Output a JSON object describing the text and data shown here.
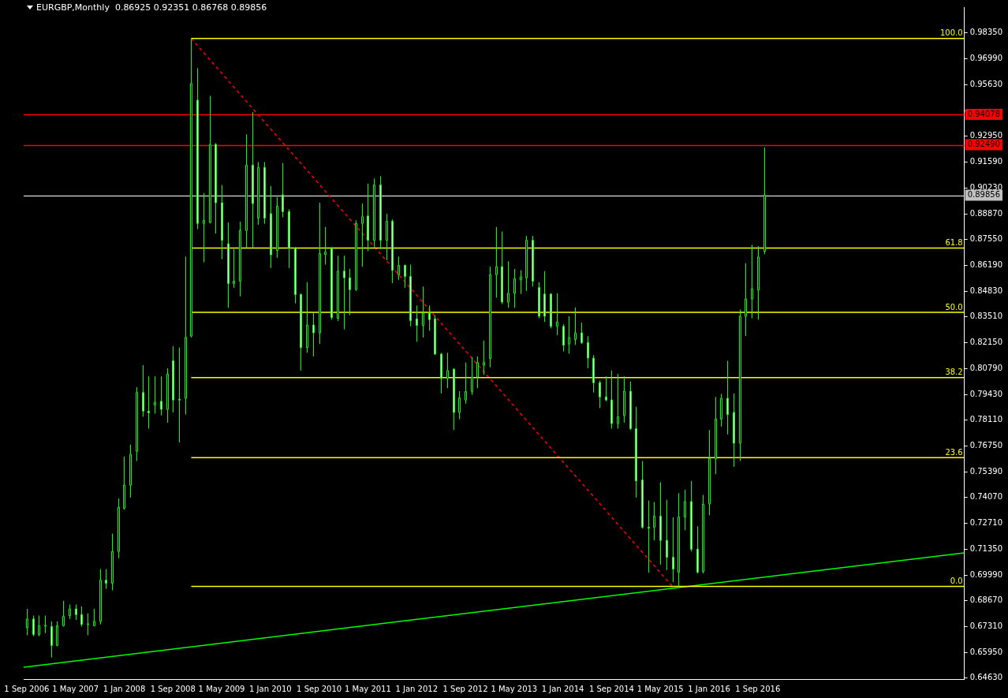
{
  "chart_data": {
    "type": "candlestick",
    "title": "EURGBP,Monthly  0.86925 0.92351 0.86768 0.89856",
    "color": "#00ff00",
    "marker": "none",
    "legend": false,
    "x": [
      "2006-09",
      "2006-10",
      "2006-11",
      "2006-12",
      "2007-01",
      "2007-02",
      "2007-03",
      "2007-04",
      "2007-05",
      "2007-06",
      "2007-07",
      "2007-08",
      "2007-09",
      "2007-10",
      "2007-11",
      "2007-12",
      "2008-01",
      "2008-02",
      "2008-03",
      "2008-04",
      "2008-05",
      "2008-06",
      "2008-07",
      "2008-08",
      "2008-09",
      "2008-10",
      "2008-11",
      "2008-12",
      "2009-01",
      "2009-02",
      "2009-03",
      "2009-04",
      "2009-05",
      "2009-06",
      "2009-07",
      "2009-08",
      "2009-09",
      "2009-10",
      "2009-11",
      "2009-12",
      "2010-01",
      "2010-02",
      "2010-03",
      "2010-04",
      "2010-05",
      "2010-06",
      "2010-07",
      "2010-08",
      "2010-09",
      "2010-10",
      "2010-11",
      "2010-12",
      "2011-01",
      "2011-02",
      "2011-03",
      "2011-04",
      "2011-05",
      "2011-06",
      "2011-07",
      "2011-08",
      "2011-09",
      "2011-10",
      "2011-11",
      "2011-12",
      "2012-01",
      "2012-02",
      "2012-03",
      "2012-04",
      "2012-05",
      "2012-06",
      "2012-07",
      "2012-08",
      "2012-09",
      "2012-10",
      "2012-11",
      "2012-12",
      "2013-01",
      "2013-02",
      "2013-03",
      "2013-04",
      "2013-05",
      "2013-06",
      "2013-07",
      "2013-08",
      "2013-09",
      "2013-10",
      "2013-11",
      "2013-12",
      "2014-01",
      "2014-02",
      "2014-03",
      "2014-04",
      "2014-05",
      "2014-06",
      "2014-07",
      "2014-08",
      "2014-09",
      "2014-10",
      "2014-11",
      "2014-12",
      "2015-01",
      "2015-02",
      "2015-03",
      "2015-04",
      "2015-05",
      "2015-06",
      "2015-07",
      "2015-08",
      "2015-09",
      "2015-10",
      "2015-11",
      "2015-12",
      "2016-01",
      "2016-02",
      "2016-03",
      "2016-04",
      "2016-05",
      "2016-06",
      "2016-07",
      "2016-08",
      "2016-09",
      "2016-10"
    ],
    "ohlc": [
      [
        0.6724,
        0.6823,
        0.6685,
        0.677
      ],
      [
        0.677,
        0.6788,
        0.668,
        0.6689
      ],
      [
        0.6689,
        0.6788,
        0.668,
        0.6735
      ],
      [
        0.6735,
        0.6788,
        0.6696,
        0.6737
      ],
      [
        0.6731,
        0.6758,
        0.6569,
        0.6632
      ],
      [
        0.6632,
        0.6758,
        0.6627,
        0.6735
      ],
      [
        0.6735,
        0.6865,
        0.6731,
        0.6784
      ],
      [
        0.6788,
        0.6846,
        0.677,
        0.6823
      ],
      [
        0.6823,
        0.6846,
        0.6765,
        0.6793
      ],
      [
        0.6793,
        0.6835,
        0.6731,
        0.6742
      ],
      [
        0.6742,
        0.68,
        0.6685,
        0.6745
      ],
      [
        0.6735,
        0.6823,
        0.6731,
        0.6758
      ],
      [
        0.6758,
        0.7031,
        0.6742,
        0.6973
      ],
      [
        0.6973,
        0.7031,
        0.6927,
        0.6957
      ],
      [
        0.6957,
        0.7216,
        0.692,
        0.7123
      ],
      [
        0.7123,
        0.74,
        0.7088,
        0.7354
      ],
      [
        0.7349,
        0.7619,
        0.7342,
        0.7469
      ],
      [
        0.7469,
        0.7682,
        0.7405,
        0.7631
      ],
      [
        0.7647,
        0.7982,
        0.7596,
        0.7954
      ],
      [
        0.7954,
        0.8097,
        0.7827,
        0.7857
      ],
      [
        0.7857,
        0.8039,
        0.7765,
        0.7848
      ],
      [
        0.7889,
        0.8039,
        0.7843,
        0.7903
      ],
      [
        0.7908,
        0.8039,
        0.7834,
        0.7866
      ],
      [
        0.7866,
        0.8081,
        0.7797,
        0.8051
      ],
      [
        0.812,
        0.8196,
        0.785,
        0.7915
      ],
      [
        0.7919,
        0.8189,
        0.7693,
        0.7917
      ],
      [
        0.7924,
        0.8665,
        0.7839,
        0.8242
      ],
      [
        0.8249,
        0.9805,
        0.8242,
        0.957
      ],
      [
        0.9482,
        0.965,
        0.8808,
        0.8838
      ],
      [
        0.8838,
        0.8997,
        0.8635,
        0.8854
      ],
      [
        0.8843,
        0.9505,
        0.8838,
        0.9251
      ],
      [
        0.9251,
        0.9258,
        0.8785,
        0.8946
      ],
      [
        0.8946,
        0.9039,
        0.8651,
        0.875
      ],
      [
        0.8732,
        0.8843,
        0.8397,
        0.8524
      ],
      [
        0.8524,
        0.8704,
        0.8501,
        0.8536
      ],
      [
        0.8536,
        0.8847,
        0.8457,
        0.8801
      ],
      [
        0.8801,
        0.9304,
        0.8711,
        0.9143
      ],
      [
        0.9143,
        0.942,
        0.8711,
        0.8942
      ],
      [
        0.8866,
        0.9159,
        0.8831,
        0.9131
      ],
      [
        0.9131,
        0.9159,
        0.8836,
        0.8866
      ],
      [
        0.8889,
        0.9034,
        0.8605,
        0.8674
      ],
      [
        0.8697,
        0.8976,
        0.8658,
        0.8928
      ],
      [
        0.8988,
        0.9154,
        0.887,
        0.89
      ],
      [
        0.89,
        0.8912,
        0.8605,
        0.8709
      ],
      [
        0.8709,
        0.8716,
        0.842,
        0.8466
      ],
      [
        0.8466,
        0.8473,
        0.8069,
        0.8189
      ],
      [
        0.8189,
        0.8531,
        0.8162,
        0.8307
      ],
      [
        0.8307,
        0.8369,
        0.8143,
        0.8266
      ],
      [
        0.8266,
        0.8946,
        0.8208,
        0.8681
      ],
      [
        0.8676,
        0.882,
        0.8623,
        0.8688
      ],
      [
        0.8709,
        0.8716,
        0.8335,
        0.8346
      ],
      [
        0.8342,
        0.8669,
        0.8328,
        0.8589
      ],
      [
        0.8589,
        0.8669,
        0.8284,
        0.8554
      ],
      [
        0.8554,
        0.86,
        0.8358,
        0.8492
      ],
      [
        0.8492,
        0.8854,
        0.8485,
        0.8838
      ],
      [
        0.8838,
        0.8942,
        0.8612,
        0.8873
      ],
      [
        0.8877,
        0.9046,
        0.8693,
        0.875
      ],
      [
        0.875,
        0.9073,
        0.8716,
        0.9039
      ],
      [
        0.9039,
        0.9085,
        0.8704,
        0.875
      ],
      [
        0.875,
        0.8889,
        0.8646,
        0.8849
      ],
      [
        0.8849,
        0.8859,
        0.8526,
        0.8593
      ],
      [
        0.857,
        0.8665,
        0.8543,
        0.8619
      ],
      [
        0.8619,
        0.8623,
        0.8501,
        0.8561
      ],
      [
        0.8561,
        0.8623,
        0.83,
        0.833
      ],
      [
        0.8339,
        0.8409,
        0.8219,
        0.8305
      ],
      [
        0.8305,
        0.8508,
        0.8242,
        0.8369
      ],
      [
        0.8369,
        0.8409,
        0.8277,
        0.8335
      ],
      [
        0.8339,
        0.8358,
        0.815,
        0.8155
      ],
      [
        0.8155,
        0.8162,
        0.7949,
        0.8028
      ],
      [
        0.8028,
        0.8162,
        0.7977,
        0.8069
      ],
      [
        0.8076,
        0.8081,
        0.7758,
        0.785
      ],
      [
        0.785,
        0.7961,
        0.7815,
        0.7926
      ],
      [
        0.7915,
        0.8111,
        0.7896,
        0.7959
      ],
      [
        0.7959,
        0.8139,
        0.7942,
        0.8035
      ],
      [
        0.8035,
        0.8143,
        0.7977,
        0.8111
      ],
      [
        0.8097,
        0.8226,
        0.8046,
        0.8111
      ],
      [
        0.8132,
        0.8612,
        0.8086,
        0.857
      ],
      [
        0.857,
        0.882,
        0.845,
        0.8612
      ],
      [
        0.8612,
        0.8796,
        0.8416,
        0.8427
      ],
      [
        0.8427,
        0.864,
        0.8397,
        0.8473
      ],
      [
        0.8473,
        0.86,
        0.8397,
        0.8549
      ],
      [
        0.8543,
        0.8593,
        0.8469,
        0.8559
      ],
      [
        0.8554,
        0.8773,
        0.8485,
        0.875
      ],
      [
        0.875,
        0.8773,
        0.8508,
        0.8536
      ],
      [
        0.8503,
        0.8531,
        0.8342,
        0.8353
      ],
      [
        0.8469,
        0.8589,
        0.8323,
        0.8353
      ],
      [
        0.8469,
        0.8473,
        0.8289,
        0.83
      ],
      [
        0.83,
        0.8473,
        0.8254,
        0.8323
      ],
      [
        0.83,
        0.8312,
        0.8169,
        0.8201
      ],
      [
        0.8208,
        0.8353,
        0.8157,
        0.8242
      ],
      [
        0.8231,
        0.8399,
        0.8203,
        0.8266
      ],
      [
        0.8266,
        0.8319,
        0.8208,
        0.8215
      ],
      [
        0.8215,
        0.8249,
        0.8081,
        0.8134
      ],
      [
        0.8134,
        0.815,
        0.7954,
        0.8005
      ],
      [
        0.8005,
        0.8016,
        0.7873,
        0.7931
      ],
      [
        0.7931,
        0.8039,
        0.7908,
        0.7915
      ],
      [
        0.7915,
        0.8069,
        0.7765,
        0.7792
      ],
      [
        0.7792,
        0.8051,
        0.7765,
        0.7827
      ],
      [
        0.7834,
        0.8039,
        0.7797,
        0.7961
      ],
      [
        0.7961,
        0.8012,
        0.7758,
        0.7765
      ],
      [
        0.7765,
        0.788,
        0.7405,
        0.7492
      ],
      [
        0.7497,
        0.7596,
        0.7243,
        0.725
      ],
      [
        0.725,
        0.7389,
        0.7012,
        0.7245
      ],
      [
        0.725,
        0.7382,
        0.7181,
        0.7308
      ],
      [
        0.7308,
        0.7485,
        0.7054,
        0.7181
      ],
      [
        0.7181,
        0.7393,
        0.7026,
        0.7093
      ],
      [
        0.7093,
        0.7301,
        0.6962,
        0.7031
      ],
      [
        0.7015,
        0.7428,
        0.694,
        0.7303
      ],
      [
        0.7303,
        0.7446,
        0.7234,
        0.7384
      ],
      [
        0.7384,
        0.7492,
        0.7123,
        0.7135
      ],
      [
        0.7135,
        0.7255,
        0.7008,
        0.7015
      ],
      [
        0.7019,
        0.7419,
        0.7008,
        0.737
      ],
      [
        0.7372,
        0.7758,
        0.7312,
        0.7608
      ],
      [
        0.7608,
        0.7931,
        0.7527,
        0.7815
      ],
      [
        0.7815,
        0.7947,
        0.7776,
        0.7924
      ],
      [
        0.7924,
        0.812,
        0.7735,
        0.7839
      ],
      [
        0.785,
        0.7949,
        0.7566,
        0.7689
      ],
      [
        0.7689,
        0.8388,
        0.7596,
        0.8353
      ],
      [
        0.8353,
        0.863,
        0.8249,
        0.8443
      ],
      [
        0.8443,
        0.8727,
        0.8342,
        0.8496
      ],
      [
        0.8489,
        0.872,
        0.8335,
        0.8663
      ],
      [
        0.86925,
        0.92351,
        0.86768,
        0.89856
      ]
    ],
    "xlim": [
      "2006-08-16",
      "2019-06-28"
    ],
    "xticks": [
      {
        "value": "2006-09",
        "label": "1 Sep 2006"
      },
      {
        "value": "2007-05",
        "label": "1 May 2007"
      },
      {
        "value": "2008-01",
        "label": "1 Jan 2008"
      },
      {
        "value": "2008-09",
        "label": "1 Sep 2008"
      },
      {
        "value": "2009-05",
        "label": "1 May 2009"
      },
      {
        "value": "2010-01",
        "label": "1 Jan 2010"
      },
      {
        "value": "2010-09",
        "label": "1 Sep 2010"
      },
      {
        "value": "2011-05",
        "label": "1 May 2011"
      },
      {
        "value": "2012-01",
        "label": "1 Jan 2012"
      },
      {
        "value": "2012-09",
        "label": "1 Sep 2012"
      },
      {
        "value": "2013-05",
        "label": "1 May 2013"
      },
      {
        "value": "2014-01",
        "label": "1 Jan 2014"
      },
      {
        "value": "2014-09",
        "label": "1 Sep 2014"
      },
      {
        "value": "2015-05",
        "label": "1 May 2015"
      },
      {
        "value": "2016-01",
        "label": "1 Jan 2016"
      },
      {
        "value": "2016-09",
        "label": "1 Sep 2016"
      }
    ],
    "ylim": [
      0.6456,
      0.9969
    ],
    "yticks": [
      {
        "value": 0.6463,
        "label": "0.64630"
      },
      {
        "value": 0.6595,
        "label": "0.65950"
      },
      {
        "value": 0.6731,
        "label": "0.67310"
      },
      {
        "value": 0.6867,
        "label": "0.68670"
      },
      {
        "value": 0.6999,
        "label": "0.69990"
      },
      {
        "value": 0.7135,
        "label": "0.71350"
      },
      {
        "value": 0.7271,
        "label": "0.72710"
      },
      {
        "value": 0.7407,
        "label": "0.74070"
      },
      {
        "value": 0.7539,
        "label": "0.75390"
      },
      {
        "value": 0.7675,
        "label": "0.76750"
      },
      {
        "value": 0.7811,
        "label": "0.78110"
      },
      {
        "value": 0.7943,
        "label": "0.79430"
      },
      {
        "value": 0.8079,
        "label": "0.80790"
      },
      {
        "value": 0.8215,
        "label": "0.82150"
      },
      {
        "value": 0.8351,
        "label": "0.83510"
      },
      {
        "value": 0.8483,
        "label": "0.84830"
      },
      {
        "value": 0.8619,
        "label": "0.86190"
      },
      {
        "value": 0.8755,
        "label": "0.87550"
      },
      {
        "value": 0.8887,
        "label": "0.88870"
      },
      {
        "value": 0.9023,
        "label": "0.90230"
      },
      {
        "value": 0.9159,
        "label": "0.91590"
      },
      {
        "value": 0.9295,
        "label": "0.92950"
      },
      {
        "value": 0.9427,
        "label": null
      },
      {
        "value": 0.9563,
        "label": "0.95630"
      },
      {
        "value": 0.9699,
        "label": "0.96990"
      },
      {
        "value": 0.9835,
        "label": "0.98350"
      }
    ],
    "series": [
      {
        "type": "line",
        "name": "100.0",
        "color": "#ffff00",
        "x": [
          "2008-12",
          "2019-06-28"
        ],
        "values": [
          0.9805,
          0.9805
        ]
      },
      {
        "type": "line",
        "name": "61.8",
        "color": "#ffff00",
        "x": [
          "2008-12",
          "2019-06-28"
        ],
        "values": [
          0.8709,
          0.8709
        ]
      },
      {
        "type": "line",
        "name": "50.0",
        "color": "#ffff00",
        "x": [
          "2008-12",
          "2019-06-28"
        ],
        "values": [
          0.8373,
          0.8373
        ]
      },
      {
        "type": "line",
        "name": "38.2",
        "color": "#ffff00",
        "x": [
          "2008-12",
          "2019-06-28"
        ],
        "values": [
          0.8032,
          0.8032
        ]
      },
      {
        "type": "line",
        "name": "23.6",
        "color": "#ffff00",
        "x": [
          "2008-12",
          "2019-06-28"
        ],
        "values": [
          0.7614,
          0.7614
        ]
      },
      {
        "type": "line",
        "name": "0.0",
        "color": "#ffff00",
        "x": [
          "2008-12",
          "2019-06-28"
        ],
        "values": [
          0.694,
          0.694
        ]
      },
      {
        "type": "line",
        "color": "#ff0000",
        "line_style": "dashed",
        "x": [
          "2008-12",
          "2015-07"
        ],
        "values": [
          0.9805,
          0.694
        ]
      },
      {
        "type": "line",
        "color": "#00ff00",
        "x": [
          "2006-08-16",
          "2019-06-28"
        ],
        "values": [
          0.6518,
          0.7116
        ]
      }
    ],
    "ref_lines": [
      {
        "axis": "y",
        "value": 0.94078,
        "label": "0.94078",
        "color": "#ff0000"
      },
      {
        "axis": "y",
        "value": 0.9249,
        "label": "0.92490",
        "color": "#ff0000"
      },
      {
        "axis": "y",
        "value": 0.89856,
        "label": "0.89856",
        "color": "#c0c0c0"
      }
    ]
  }
}
